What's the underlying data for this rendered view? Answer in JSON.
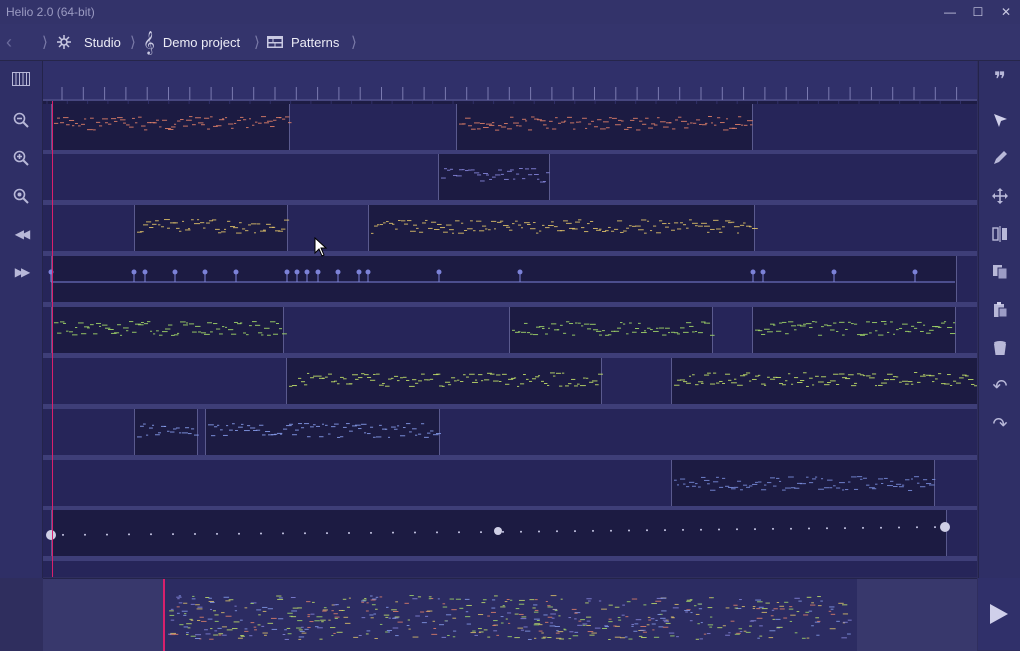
{
  "window": {
    "title": "Helio 2.0 (64-bit)"
  },
  "breadcrumbs": [
    {
      "label": "Studio",
      "icon": "studio-icon"
    },
    {
      "label": "Demo project",
      "icon": "treble-clef-icon"
    },
    {
      "label": "Patterns",
      "icon": "patterns-icon"
    }
  ],
  "left_tools": [
    "piano-roll-icon",
    "zoom-out-icon",
    "zoom-in-icon",
    "zoom-fit-icon",
    "rewind-icon",
    "fast-forward-icon"
  ],
  "right_tools": [
    "annotations-icon",
    "select-tool-icon",
    "pen-tool-icon",
    "drag-tool-icon",
    "cut-tool-icon",
    "copy-icon",
    "paste-icon",
    "delete-icon",
    "undo-icon",
    "redo-icon"
  ],
  "colors": {
    "lane1": "#e8846a",
    "lane2": "#8a8ae0",
    "lane3": "#e6c86a",
    "lane4": "#7c82d8",
    "lane5": "#a8e06a",
    "lane6": "#c8e86a",
    "lane7": "#8aa0f0",
    "lane8": "#7c90e0",
    "playhead": "#d8206c",
    "accent": "#8f8fc8"
  }
}
